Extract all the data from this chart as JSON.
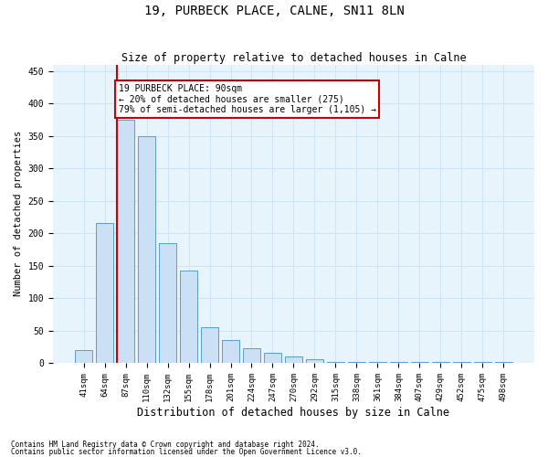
{
  "title": "19, PURBECK PLACE, CALNE, SN11 8LN",
  "subtitle": "Size of property relative to detached houses in Calne",
  "xlabel": "Distribution of detached houses by size in Calne",
  "ylabel": "Number of detached properties",
  "categories": [
    "41sqm",
    "64sqm",
    "87sqm",
    "110sqm",
    "132sqm",
    "155sqm",
    "178sqm",
    "201sqm",
    "224sqm",
    "247sqm",
    "270sqm",
    "292sqm",
    "315sqm",
    "338sqm",
    "361sqm",
    "384sqm",
    "407sqm",
    "429sqm",
    "452sqm",
    "475sqm",
    "498sqm"
  ],
  "values": [
    20,
    215,
    375,
    350,
    185,
    143,
    55,
    35,
    22,
    15,
    10,
    5,
    2,
    1,
    1,
    2,
    1,
    1,
    1,
    1,
    2
  ],
  "bar_color": "#cce0f5",
  "bar_edge_color": "#5b9bd5",
  "red_line_index": 2,
  "annotation_line1": "19 PURBECK PLACE: 90sqm",
  "annotation_line2": "← 20% of detached houses are smaller (275)",
  "annotation_line3": "79% of semi-detached houses are larger (1,105) →",
  "annotation_box_color": "#ffffff",
  "annotation_border_color": "#cc0000",
  "red_line_color": "#cc0000",
  "grid_color": "#d0e4f7",
  "background_color": "#e8f4fc",
  "ylim": [
    0,
    460
  ],
  "footer1": "Contains HM Land Registry data © Crown copyright and database right 2024.",
  "footer2": "Contains public sector information licensed under the Open Government Licence v3.0.",
  "title_fontsize": 10,
  "subtitle_fontsize": 8.5,
  "tick_fontsize": 6.5,
  "ylabel_fontsize": 7.5,
  "xlabel_fontsize": 8.5,
  "annotation_fontsize": 7,
  "footer_fontsize": 5.5
}
